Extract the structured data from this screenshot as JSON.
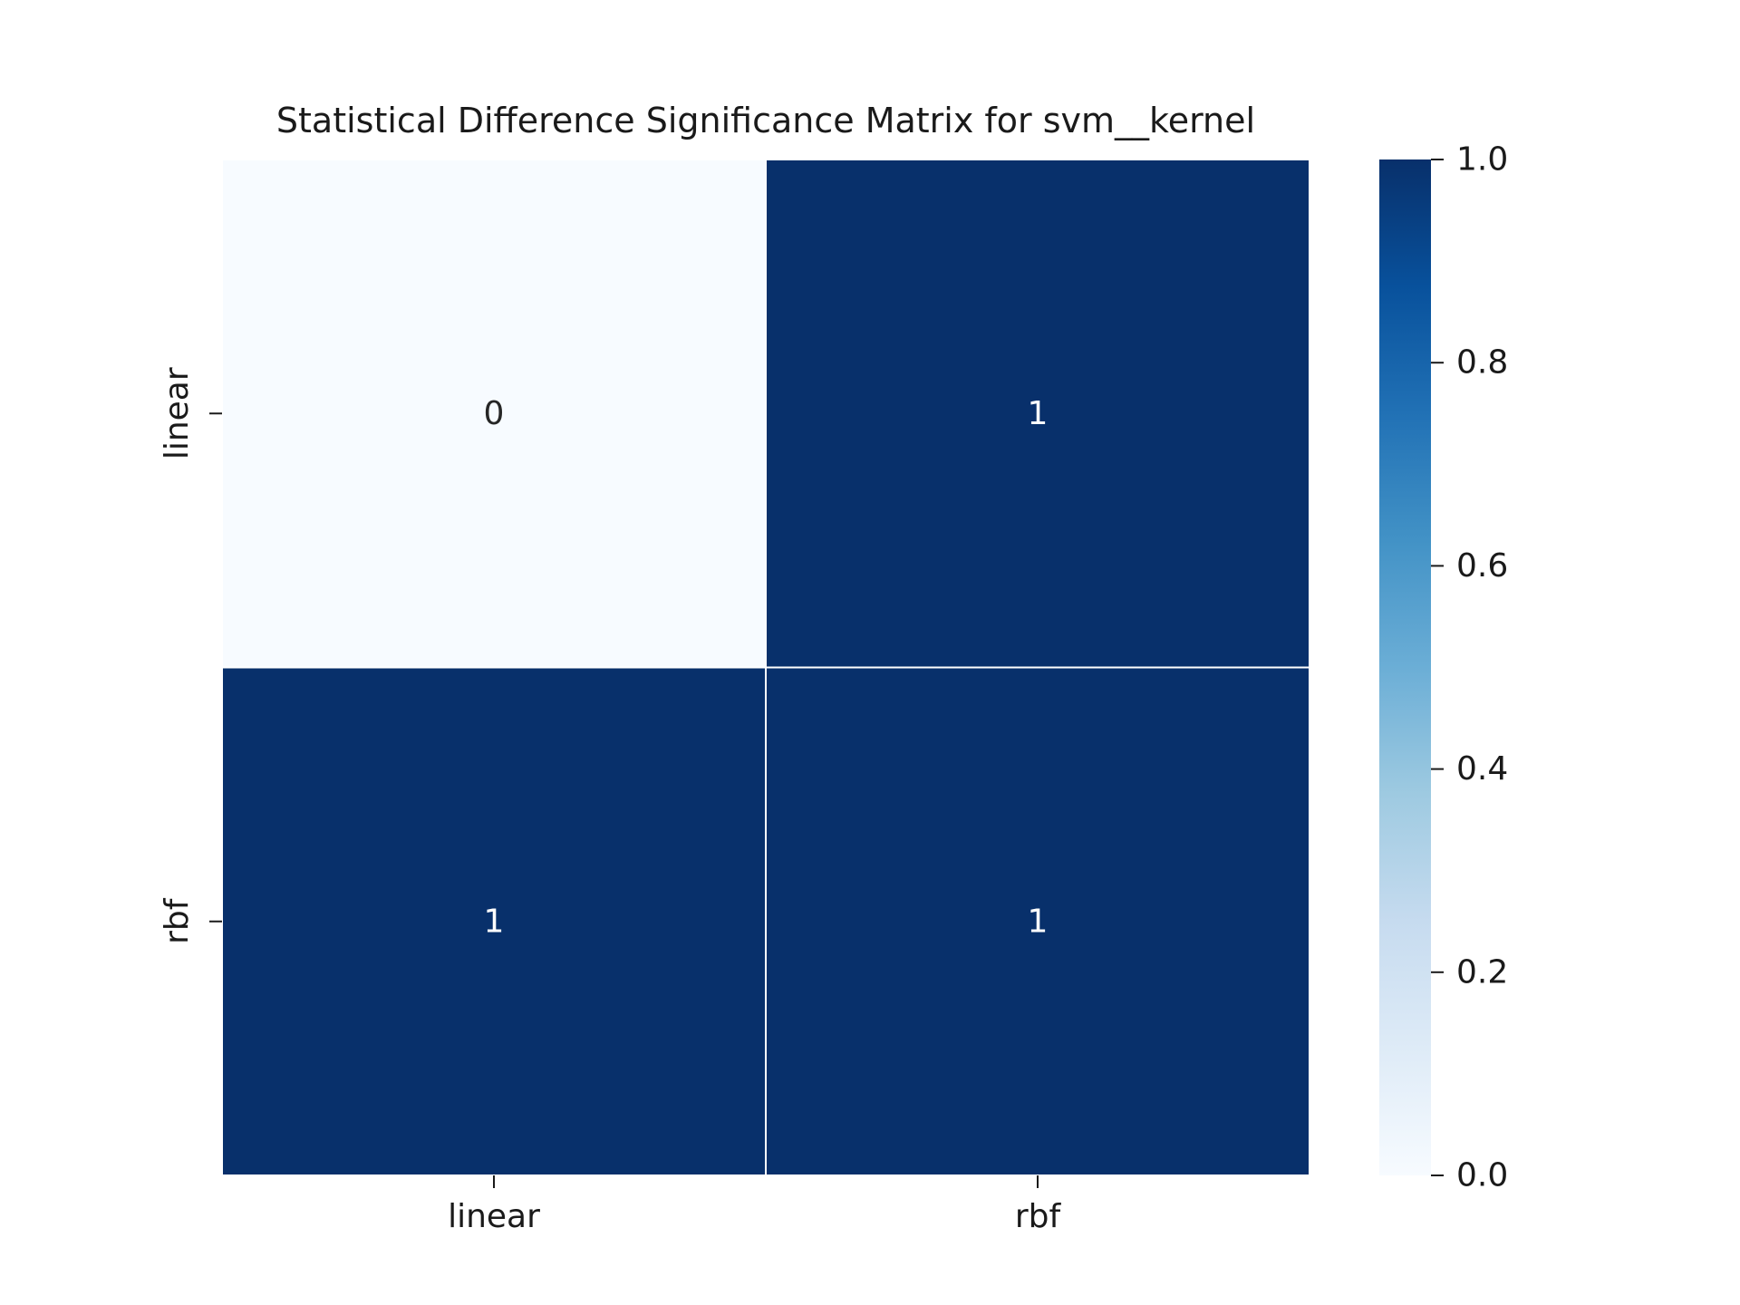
{
  "chart_data": {
    "type": "heatmap",
    "title": "Statistical Difference Significance Matrix for svm__kernel",
    "xlabel": "",
    "ylabel": "",
    "x_categories": [
      "linear",
      "rbf"
    ],
    "y_categories": [
      "linear",
      "rbf"
    ],
    "values": [
      [
        0,
        1
      ],
      [
        1,
        1
      ]
    ],
    "annotations": [
      [
        "0",
        "1"
      ],
      [
        "1",
        "1"
      ]
    ],
    "colormap": "Blues",
    "vmin": 0.0,
    "vmax": 1.0,
    "colorbar": {
      "ticks": [
        0.0,
        0.2,
        0.4,
        0.6,
        0.8,
        1.0
      ],
      "tick_labels": [
        "0.0",
        "0.2",
        "0.4",
        "0.6",
        "0.8",
        "1.0"
      ]
    },
    "colors": {
      "low": "#f7fbff",
      "high": "#08306b",
      "cell_border": "#ffffff",
      "annotation_on_dark": "#ffffff",
      "annotation_on_light": "#262626"
    },
    "grid": false
  }
}
